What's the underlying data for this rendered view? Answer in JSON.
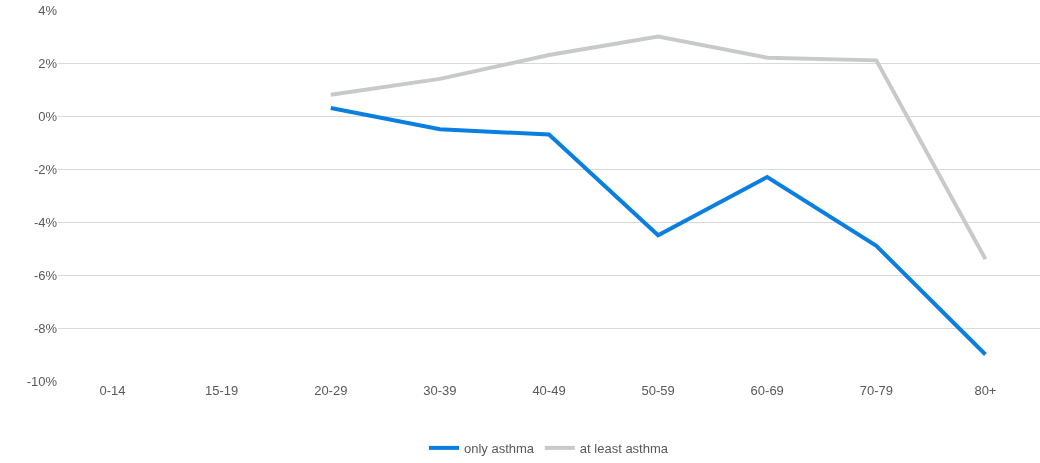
{
  "chart_data": {
    "type": "line",
    "categories": [
      "0-14",
      "15-19",
      "20-29",
      "30-39",
      "40-49",
      "50-59",
      "60-69",
      "70-79",
      "80+"
    ],
    "series": [
      {
        "name": "only asthma",
        "color": "#0a7fe0",
        "values": [
          null,
          null,
          0.3,
          -0.5,
          -0.7,
          -4.5,
          -2.3,
          -4.9,
          -9.0
        ]
      },
      {
        "name": "at least asthma",
        "color": "#c8cac9",
        "values": [
          null,
          null,
          0.8,
          1.4,
          2.3,
          3.0,
          2.2,
          2.1,
          -5.4
        ]
      }
    ],
    "ylim": [
      -10,
      4
    ],
    "yticks": [
      {
        "value": -10,
        "label": "-10%"
      },
      {
        "value": -8,
        "label": "-8%"
      },
      {
        "value": -6,
        "label": "-6%"
      },
      {
        "value": -4,
        "label": "-4%"
      },
      {
        "value": -2,
        "label": "-2%"
      },
      {
        "value": 0,
        "label": "0%"
      },
      {
        "value": 2,
        "label": "2%"
      },
      {
        "value": 4,
        "label": "4%"
      }
    ],
    "grid": "y",
    "legend": "bottom",
    "marker": "none",
    "line_style": "solid"
  }
}
